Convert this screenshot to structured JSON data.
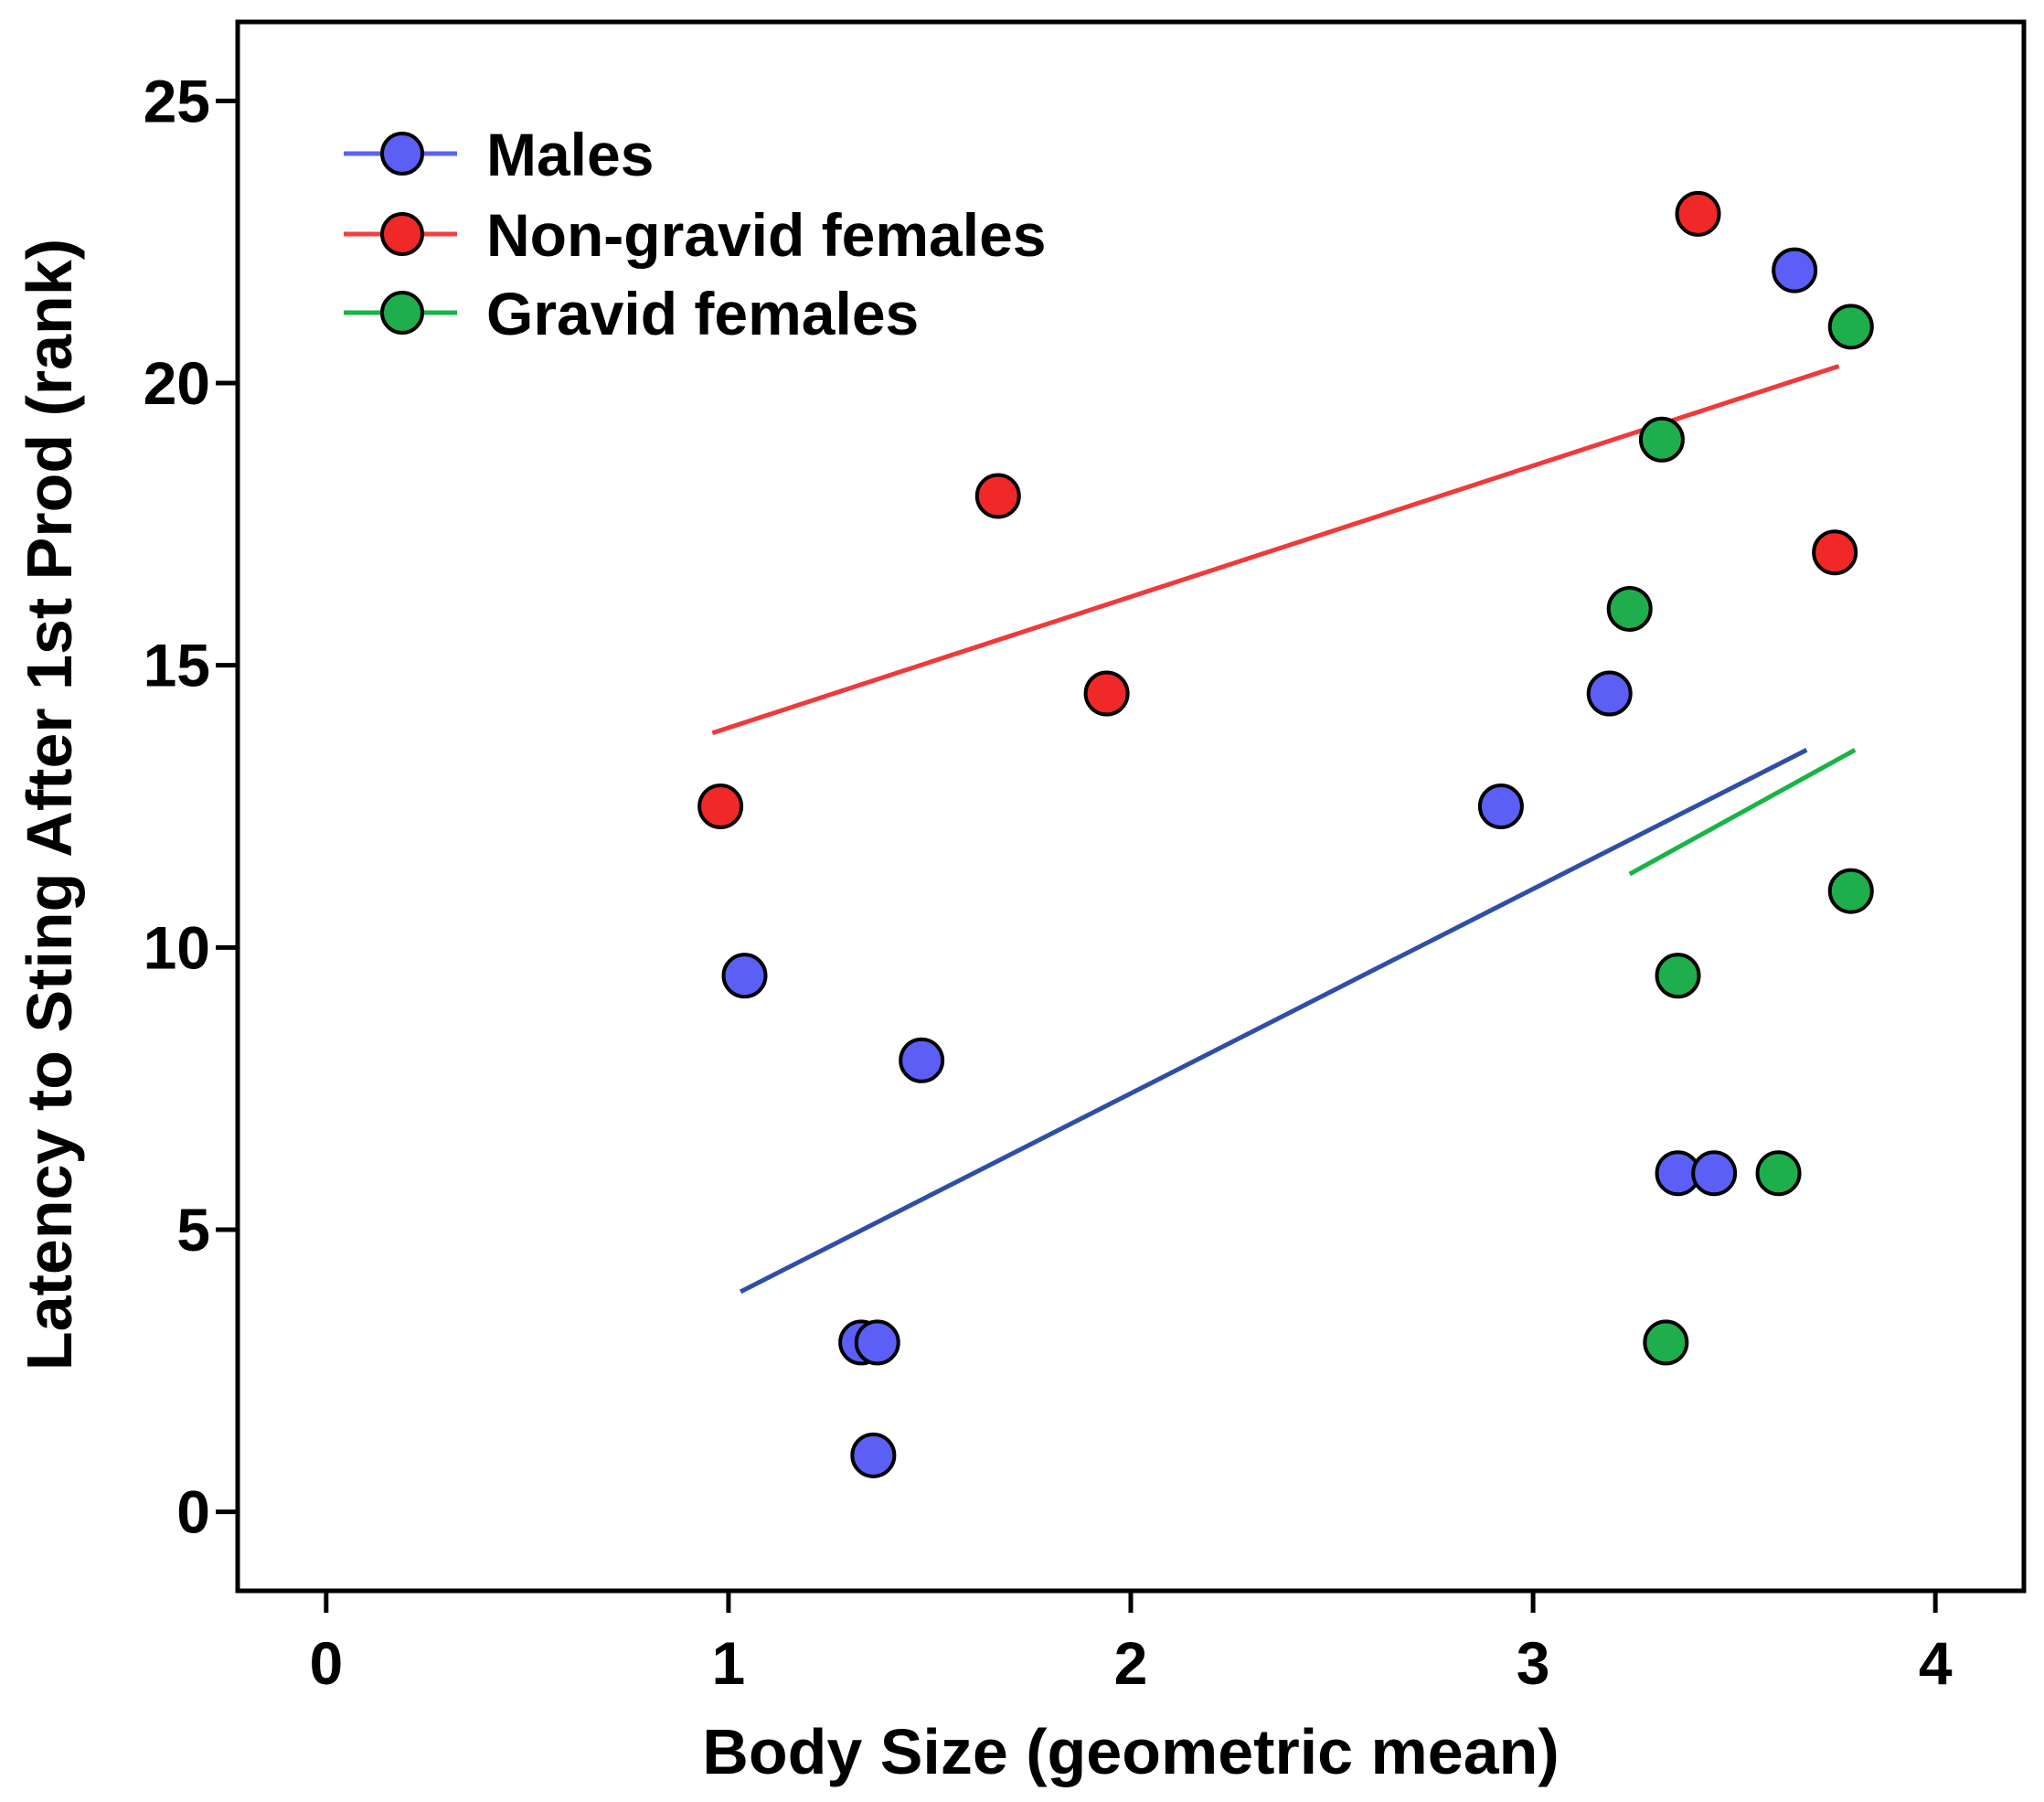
{
  "chart_data": {
    "type": "scatter",
    "title": "",
    "xlabel": "Body Size (geometric mean)",
    "ylabel": "Latency to Sting After 1st Prod (rank)",
    "xlim": [
      -0.22,
      4.22
    ],
    "ylim": [
      -1.4,
      26.4
    ],
    "xticks": [
      0,
      1,
      2,
      3,
      4
    ],
    "yticks": [
      0,
      5,
      10,
      15,
      20,
      25
    ],
    "legend_position": "top-left",
    "grid": false,
    "series": [
      {
        "name": "Males",
        "marker_color": "#5b5ff5",
        "line_color": "#5a63f0",
        "fit_line_color": "#2e4fa8",
        "points": [
          {
            "x": 1.04,
            "y": 9.5
          },
          {
            "x": 1.48,
            "y": 8.0
          },
          {
            "x": 1.33,
            "y": 3.0
          },
          {
            "x": 1.37,
            "y": 3.0
          },
          {
            "x": 1.36,
            "y": 1.0
          },
          {
            "x": 2.92,
            "y": 12.5
          },
          {
            "x": 3.19,
            "y": 14.5
          },
          {
            "x": 3.36,
            "y": 6.0
          },
          {
            "x": 3.45,
            "y": 6.0
          },
          {
            "x": 3.65,
            "y": 22.0
          }
        ],
        "fit_line": {
          "x": [
            1.03,
            3.68
          ],
          "y": [
            3.9,
            13.5
          ]
        }
      },
      {
        "name": "Non-gravid females",
        "marker_color": "#f02828",
        "line_color": "#f04040",
        "fit_line_color": "#f03a3a",
        "points": [
          {
            "x": 0.98,
            "y": 12.5
          },
          {
            "x": 1.67,
            "y": 18.0
          },
          {
            "x": 1.94,
            "y": 14.5
          },
          {
            "x": 3.41,
            "y": 23.0
          },
          {
            "x": 3.75,
            "y": 17.0
          }
        ],
        "fit_line": {
          "x": [
            0.96,
            3.76
          ],
          "y": [
            13.8,
            20.3
          ]
        }
      },
      {
        "name": "Gravid females",
        "marker_color": "#1fae4c",
        "line_color": "#18b446",
        "fit_line_color": "#18b446",
        "points": [
          {
            "x": 3.24,
            "y": 16.0
          },
          {
            "x": 3.32,
            "y": 19.0
          },
          {
            "x": 3.36,
            "y": 9.5
          },
          {
            "x": 3.33,
            "y": 3.0
          },
          {
            "x": 3.61,
            "y": 6.0
          },
          {
            "x": 3.79,
            "y": 21.0
          },
          {
            "x": 3.79,
            "y": 11.0
          }
        ],
        "fit_line": {
          "x": [
            3.24,
            3.8
          ],
          "y": [
            11.3,
            13.5
          ]
        }
      }
    ]
  }
}
